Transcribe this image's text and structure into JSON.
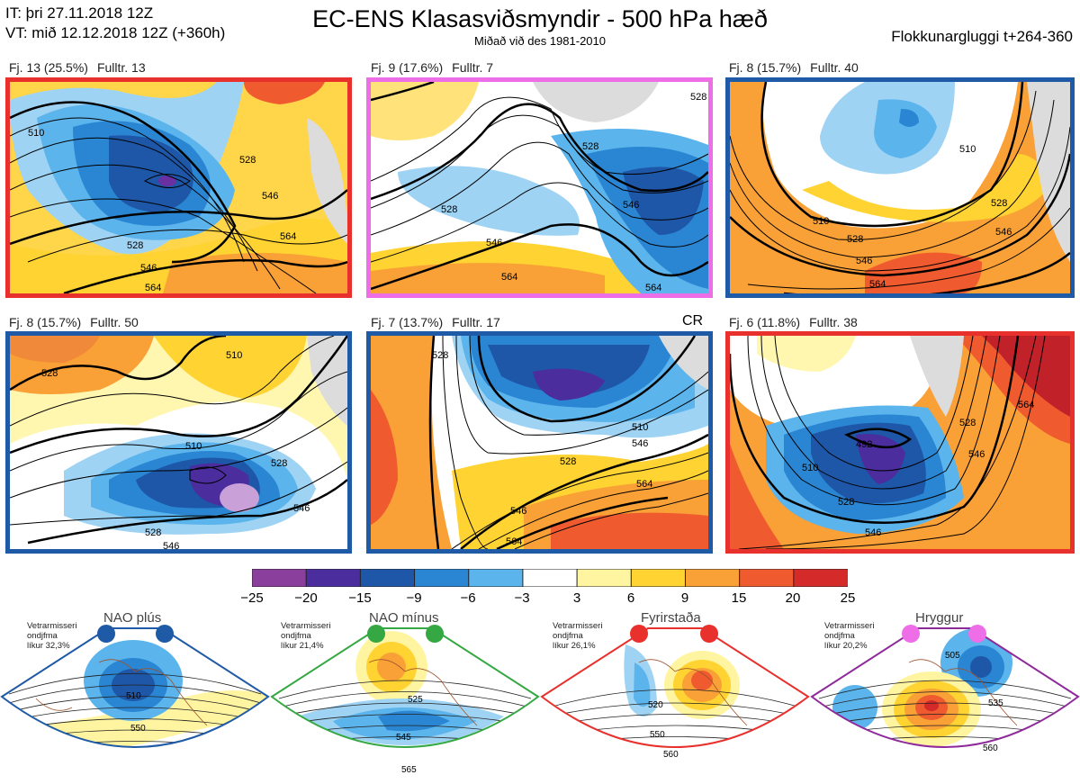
{
  "header": {
    "init_time": "IT: þri 27.11.2018 12Z",
    "valid_time": "VT: mið 12.12.2018 12Z  (+360h)",
    "title": "EC-ENS Klasasviðsmyndir - 500 hPa hæð",
    "subtitle": "Miðað við des 1981-2010",
    "window": "Flokkunargluggi t+264-360"
  },
  "colors": {
    "regime_blue": "#1f5aa6",
    "regime_pink": "#ee6ee8",
    "regime_red": "#e8302c",
    "regime_green": "#35a843",
    "regime_purple": "#8e2a9a"
  },
  "clusters": [
    {
      "label": "Fj. 13 (25.5%)",
      "rep": "Fulltr. 13",
      "border": "#e8302c",
      "contours": [
        "510",
        "528",
        "546",
        "564",
        "528",
        "546",
        "564"
      ]
    },
    {
      "label": "Fj. 9 (17.6%)",
      "rep": "Fulltr. 7",
      "border": "#ee6ee8",
      "contours": [
        "528",
        "528",
        "546",
        "546",
        "564",
        "564",
        "528"
      ]
    },
    {
      "label": "Fj. 8 (15.7%)",
      "rep": "Fulltr. 40",
      "border": "#1f5aa6",
      "contours": [
        "510",
        "510",
        "528",
        "546",
        "564",
        "546",
        "528"
      ]
    },
    {
      "label": "Fj. 8 (15.7%)",
      "rep": "Fulltr. 50",
      "border": "#1f5aa6",
      "contours": [
        "528",
        "510",
        "510",
        "528",
        "546",
        "528",
        "546"
      ]
    },
    {
      "label": "Fj. 7 (13.7%)",
      "rep": "Fulltr. 17",
      "border": "#1f5aa6",
      "tag": "CR",
      "contours": [
        "528",
        "510",
        "528",
        "546",
        "564",
        "546",
        "564"
      ]
    },
    {
      "label": "Fj. 6 (11.8%)",
      "rep": "Fulltr. 38",
      "border": "#e8302c",
      "contours": [
        "492",
        "510",
        "528",
        "546",
        "564",
        "528",
        "546"
      ]
    }
  ],
  "colorbar": {
    "ticks": [
      "−25",
      "−20",
      "−15",
      "−9",
      "−6",
      "−3",
      "3",
      "6",
      "9",
      "15",
      "20",
      "25"
    ],
    "colors": [
      "#8a3f9d",
      "#4b2d9e",
      "#1e57a8",
      "#2a86d3",
      "#5bb4ec",
      "#ffffff",
      "#fff5a0",
      "#ffd331",
      "#f9a036",
      "#ef5a2f",
      "#d42a2a"
    ]
  },
  "regimes": [
    {
      "name": "NAO plús",
      "info": [
        "Vetrarmisseri",
        "ondjfma",
        "líkur 32,3%"
      ],
      "color": "#1f5aa6",
      "dot_colors": [
        "#1f5aa6",
        "#1f5aa6"
      ],
      "contours": [
        "510",
        "550"
      ]
    },
    {
      "name": "NAO mínus",
      "info": [
        "Vetrarmisseri",
        "ondjfma",
        "líkur 21,4%"
      ],
      "color": "#35a843",
      "dot_colors": [
        "#35a843",
        "#35a843"
      ],
      "contours": [
        "525",
        "545",
        "565"
      ]
    },
    {
      "name": "Fyrirstaða",
      "info": [
        "Vetrarmisseri",
        "ondjfma",
        "líkur 26,1%"
      ],
      "color": "#e8302c",
      "dot_colors": [
        "#e8302c",
        "#e8302c"
      ],
      "contours": [
        "520",
        "550",
        "560"
      ]
    },
    {
      "name": "Hryggur",
      "info": [
        "Vetrarmisseri",
        "ondjfma",
        "líkur 20,2%"
      ],
      "color": "#8e2a9a",
      "dot_colors": [
        "#ee6ee8",
        "#ee6ee8"
      ],
      "contours": [
        "505",
        "535",
        "560"
      ]
    }
  ]
}
